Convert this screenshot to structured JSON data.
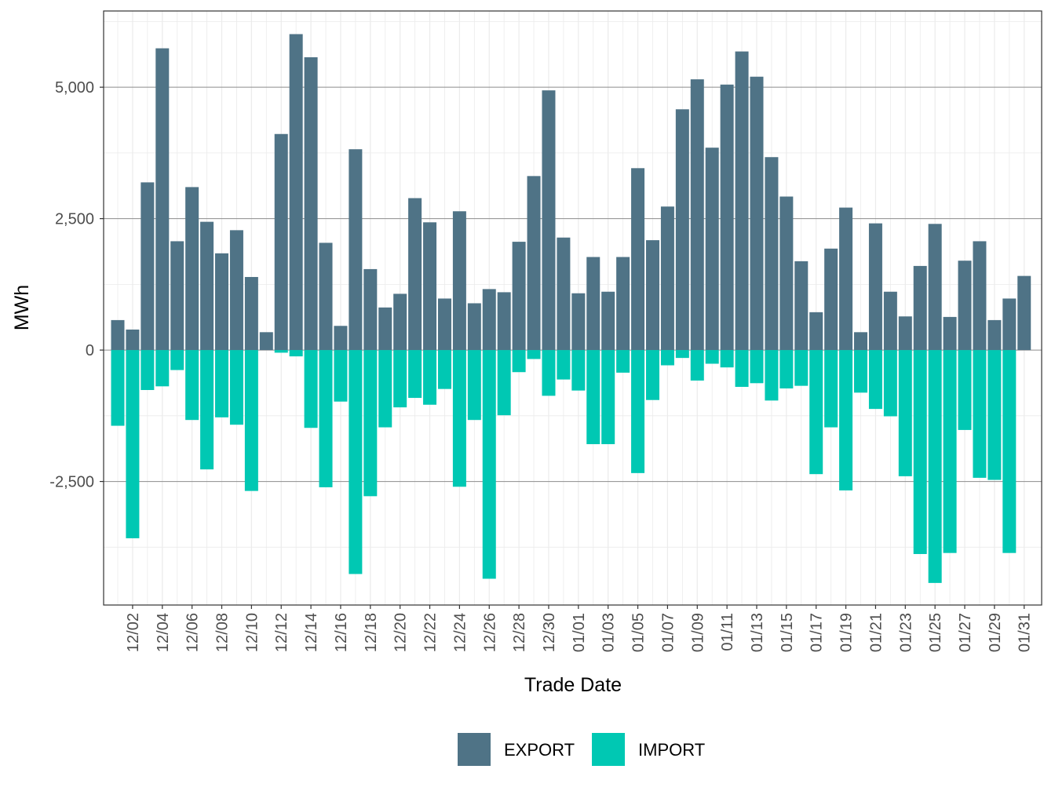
{
  "colors": {
    "export": "#4f7386",
    "import": "#00c8b3"
  },
  "chart_data": {
    "type": "bar",
    "stacked": "diverging",
    "xlabel": "Trade Date",
    "ylabel": "MWh",
    "ylim": [
      -4850,
      6450
    ],
    "y_ticks": [
      {
        "value": 5000,
        "label": "5,000"
      },
      {
        "value": 2500,
        "label": "2,500"
      },
      {
        "value": 0,
        "label": "0"
      },
      {
        "value": -2500,
        "label": "-2,500"
      }
    ],
    "x_tick_labels": [
      "12/02",
      "12/04",
      "12/06",
      "12/08",
      "12/10",
      "12/12",
      "12/14",
      "12/16",
      "12/18",
      "12/20",
      "12/22",
      "12/24",
      "12/26",
      "12/28",
      "12/30",
      "01/01",
      "01/03",
      "01/05",
      "01/07",
      "01/09",
      "01/11",
      "01/13",
      "01/15",
      "01/17",
      "01/19",
      "01/21",
      "01/23",
      "01/25",
      "01/27",
      "01/29",
      "01/31"
    ],
    "categories": [
      "12/01",
      "12/02",
      "12/03",
      "12/04",
      "12/05",
      "12/06",
      "12/07",
      "12/08",
      "12/09",
      "12/10",
      "12/11",
      "12/12",
      "12/13",
      "12/14",
      "12/15",
      "12/16",
      "12/17",
      "12/18",
      "12/19",
      "12/20",
      "12/21",
      "12/22",
      "12/23",
      "12/24",
      "12/25",
      "12/26",
      "12/27",
      "12/28",
      "12/29",
      "12/30",
      "12/31",
      "01/01",
      "01/02",
      "01/03",
      "01/04",
      "01/05",
      "01/06",
      "01/07",
      "01/08",
      "01/09",
      "01/10",
      "01/11",
      "01/12",
      "01/13",
      "01/14",
      "01/15",
      "01/16",
      "01/17",
      "01/18",
      "01/19",
      "01/20",
      "01/21",
      "01/22",
      "01/23",
      "01/24",
      "01/25",
      "01/26",
      "01/27",
      "01/28",
      "01/29",
      "01/30",
      "01/31"
    ],
    "legend": {
      "position": "bottom",
      "entries": [
        "EXPORT",
        "IMPORT"
      ]
    },
    "series": [
      {
        "name": "EXPORT",
        "values": [
          570,
          390,
          3190,
          5740,
          2070,
          3100,
          2440,
          1840,
          2280,
          1390,
          340,
          4110,
          6010,
          5570,
          2040,
          460,
          3820,
          1540,
          810,
          1070,
          2890,
          2430,
          980,
          2640,
          890,
          1160,
          1100,
          2060,
          3310,
          4940,
          2140,
          1080,
          1770,
          1110,
          1770,
          3460,
          2090,
          2730,
          4580,
          5150,
          3850,
          5050,
          5680,
          5200,
          3670,
          2920,
          1690,
          720,
          1930,
          2710,
          340,
          2410,
          1110,
          640,
          1600,
          2400,
          630,
          1700,
          2070,
          570,
          980,
          1410
        ]
      },
      {
        "name": "IMPORT",
        "values": [
          -1440,
          -3580,
          -760,
          -690,
          -380,
          -1330,
          -2270,
          -1280,
          -1420,
          -2680,
          0,
          -50,
          -120,
          -1480,
          -2610,
          -980,
          -4260,
          -2780,
          -1470,
          -1090,
          -910,
          -1040,
          -740,
          -2600,
          -1330,
          -4350,
          -1240,
          -420,
          -170,
          -870,
          -560,
          -770,
          -1790,
          -1790,
          -430,
          -2340,
          -950,
          -290,
          -150,
          -580,
          -260,
          -330,
          -700,
          -630,
          -960,
          -730,
          -680,
          -2360,
          -1470,
          -2670,
          -810,
          -1120,
          -1260,
          -2400,
          -3880,
          -4430,
          -3860,
          -1520,
          -2430,
          -2470,
          -3860,
          0
        ]
      }
    ]
  }
}
